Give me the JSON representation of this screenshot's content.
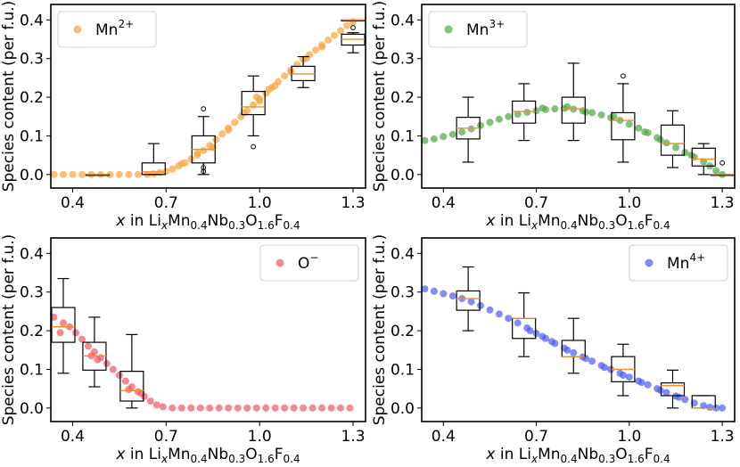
{
  "figure": {
    "x_label": {
      "italic": "x",
      "pre": " in Li",
      "s1": "x",
      "m1": "Mn",
      "s2": "0.4",
      "m2": "Nb",
      "s3": "0.3",
      "m3": "O",
      "s4": "1.6",
      "m4": "F",
      "s5": "0.4"
    },
    "y_label": "Species content (per f.u.)"
  },
  "chart_data": [
    {
      "type": "scatter",
      "id": "mn2",
      "legend": {
        "base": "Mn",
        "sup": "2+",
        "position": "top-left"
      },
      "color": "#f9a23a",
      "xlim": [
        0.33,
        1.34
      ],
      "ylim": [
        -0.035,
        0.44
      ],
      "xticks": [
        "0.4",
        "0.7",
        "1.0",
        "1.3"
      ],
      "yticks": [
        "0.0",
        "0.1",
        "0.2",
        "0.3",
        "0.4"
      ],
      "points": [
        [
          0.34,
          0.0
        ],
        [
          0.37,
          0.0
        ],
        [
          0.4,
          0.0
        ],
        [
          0.43,
          0.0
        ],
        [
          0.46,
          0.0
        ],
        [
          0.49,
          0.0
        ],
        [
          0.52,
          0.0
        ],
        [
          0.55,
          0.0
        ],
        [
          0.58,
          0.0
        ],
        [
          0.61,
          0.0
        ],
        [
          0.64,
          0.0
        ],
        [
          0.66,
          0.002
        ],
        [
          0.68,
          0.005
        ],
        [
          0.7,
          0.008
        ],
        [
          0.72,
          0.014
        ],
        [
          0.74,
          0.022
        ],
        [
          0.76,
          0.03
        ],
        [
          0.78,
          0.04
        ],
        [
          0.8,
          0.05
        ],
        [
          0.82,
          0.062
        ],
        [
          0.84,
          0.075
        ],
        [
          0.86,
          0.09
        ],
        [
          0.88,
          0.105
        ],
        [
          0.9,
          0.12
        ],
        [
          0.92,
          0.135
        ],
        [
          0.94,
          0.15
        ],
        [
          0.96,
          0.165
        ],
        [
          0.98,
          0.18
        ],
        [
          1.0,
          0.195
        ],
        [
          1.02,
          0.21
        ],
        [
          1.04,
          0.225
        ],
        [
          1.06,
          0.24
        ],
        [
          1.08,
          0.255
        ],
        [
          1.1,
          0.27
        ],
        [
          1.12,
          0.285
        ],
        [
          1.14,
          0.298
        ],
        [
          1.16,
          0.31
        ],
        [
          1.18,
          0.322
        ],
        [
          1.2,
          0.335
        ],
        [
          1.22,
          0.348
        ],
        [
          1.24,
          0.36
        ],
        [
          1.26,
          0.372
        ],
        [
          1.28,
          0.385
        ],
        [
          1.3,
          0.395
        ],
        [
          0.85,
          0.07
        ],
        [
          0.95,
          0.16
        ],
        [
          1.05,
          0.23
        ],
        [
          1.15,
          0.3
        ],
        [
          0.75,
          0.028
        ],
        [
          0.8,
          0.055
        ],
        [
          0.9,
          0.115
        ],
        [
          1.0,
          0.19
        ],
        [
          1.1,
          0.265
        ],
        [
          1.2,
          0.33
        ],
        [
          0.99,
          0.2
        ],
        [
          1.03,
          0.22
        ]
      ],
      "boxes": [
        {
          "x": 0.48,
          "q1": 0.0,
          "median": 0.0,
          "q3": 0.0,
          "wl": 0.0,
          "wh": 0.0,
          "fliers": []
        },
        {
          "x": 0.66,
          "q1": 0.0,
          "median": 0.007,
          "q3": 0.03,
          "wl": 0.0,
          "wh": 0.08,
          "fliers": []
        },
        {
          "x": 0.82,
          "q1": 0.03,
          "median": 0.065,
          "q3": 0.1,
          "wl": 0.0,
          "wh": 0.15,
          "fliers": [
            0.17,
            0.018,
            0.008
          ]
        },
        {
          "x": 0.98,
          "q1": 0.155,
          "median": 0.175,
          "q3": 0.215,
          "wl": 0.1,
          "wh": 0.255,
          "fliers": [
            0.072
          ]
        },
        {
          "x": 1.14,
          "q1": 0.243,
          "median": 0.26,
          "q3": 0.28,
          "wl": 0.225,
          "wh": 0.305,
          "fliers": []
        },
        {
          "x": 1.3,
          "q1": 0.335,
          "median": 0.35,
          "q3": 0.363,
          "wl": 0.315,
          "wh": 0.367,
          "fliers": []
        },
        {
          "x": 1.3,
          "q1": 0.398,
          "median": 0.4,
          "q3": 0.4,
          "wl": 0.398,
          "wh": 0.4,
          "fliers": [
            0.38
          ]
        }
      ]
    },
    {
      "type": "scatter",
      "id": "mn3",
      "legend": {
        "base": "Mn",
        "sup": "3+",
        "position": "top-left"
      },
      "color": "#4da642",
      "xlim": [
        0.33,
        1.34
      ],
      "ylim": [
        -0.035,
        0.44
      ],
      "xticks": [
        "0.4",
        "0.7",
        "1.0",
        "1.3"
      ],
      "yticks": [
        "0.0",
        "0.1",
        "0.2",
        "0.3",
        "0.4"
      ],
      "points": [
        [
          0.34,
          0.088
        ],
        [
          0.37,
          0.092
        ],
        [
          0.4,
          0.098
        ],
        [
          0.43,
          0.104
        ],
        [
          0.46,
          0.11
        ],
        [
          0.49,
          0.118
        ],
        [
          0.52,
          0.127
        ],
        [
          0.55,
          0.135
        ],
        [
          0.58,
          0.143
        ],
        [
          0.61,
          0.15
        ],
        [
          0.64,
          0.156
        ],
        [
          0.67,
          0.161
        ],
        [
          0.7,
          0.165
        ],
        [
          0.73,
          0.168
        ],
        [
          0.76,
          0.17
        ],
        [
          0.79,
          0.171
        ],
        [
          0.82,
          0.169
        ],
        [
          0.85,
          0.165
        ],
        [
          0.88,
          0.16
        ],
        [
          0.91,
          0.154
        ],
        [
          0.94,
          0.147
        ],
        [
          0.97,
          0.14
        ],
        [
          1.0,
          0.13
        ],
        [
          1.03,
          0.12
        ],
        [
          1.06,
          0.108
        ],
        [
          1.09,
          0.095
        ],
        [
          1.12,
          0.082
        ],
        [
          1.15,
          0.07
        ],
        [
          1.18,
          0.057
        ],
        [
          1.21,
          0.045
        ],
        [
          1.24,
          0.033
        ],
        [
          1.26,
          0.022
        ],
        [
          1.28,
          0.01
        ],
        [
          1.3,
          0.0
        ],
        [
          0.72,
          0.172
        ],
        [
          0.8,
          0.175
        ],
        [
          0.86,
          0.162
        ],
        [
          0.95,
          0.15
        ],
        [
          1.05,
          0.11
        ],
        [
          1.1,
          0.09
        ],
        [
          1.2,
          0.05
        ]
      ],
      "boxes": [
        {
          "x": 0.48,
          "q1": 0.092,
          "median": 0.12,
          "q3": 0.148,
          "wl": 0.032,
          "wh": 0.2,
          "fliers": []
        },
        {
          "x": 0.66,
          "q1": 0.133,
          "median": 0.163,
          "q3": 0.19,
          "wl": 0.088,
          "wh": 0.235,
          "fliers": []
        },
        {
          "x": 0.82,
          "q1": 0.133,
          "median": 0.17,
          "q3": 0.2,
          "wl": 0.088,
          "wh": 0.288,
          "fliers": []
        },
        {
          "x": 0.98,
          "q1": 0.09,
          "median": 0.14,
          "q3": 0.16,
          "wl": 0.032,
          "wh": 0.235,
          "fliers": [
            0.255
          ]
        },
        {
          "x": 1.14,
          "q1": 0.05,
          "median": 0.08,
          "q3": 0.128,
          "wl": 0.018,
          "wh": 0.165,
          "fliers": []
        },
        {
          "x": 1.24,
          "q1": 0.022,
          "median": 0.04,
          "q3": 0.068,
          "wl": 0.0,
          "wh": 0.08,
          "fliers": []
        },
        {
          "x": 1.3,
          "q1": 0.0,
          "median": 0.0,
          "q3": 0.0,
          "wl": 0.0,
          "wh": 0.0,
          "fliers": [
            0.03
          ]
        }
      ]
    },
    {
      "type": "scatter",
      "id": "o",
      "legend": {
        "base": "O",
        "sup": "−",
        "position": "top-right"
      },
      "color": "#f0585e",
      "xlim": [
        0.33,
        1.34
      ],
      "ylim": [
        -0.035,
        0.44
      ],
      "xticks": [
        "0.4",
        "0.7",
        "1.0",
        "1.3"
      ],
      "yticks": [
        "0.0",
        "0.1",
        "0.2",
        "0.3",
        "0.4"
      ],
      "points": [
        [
          0.34,
          0.235
        ],
        [
          0.37,
          0.22
        ],
        [
          0.39,
          0.21
        ],
        [
          0.41,
          0.195
        ],
        [
          0.43,
          0.178
        ],
        [
          0.45,
          0.16
        ],
        [
          0.47,
          0.145
        ],
        [
          0.49,
          0.13
        ],
        [
          0.51,
          0.115
        ],
        [
          0.53,
          0.1
        ],
        [
          0.55,
          0.085
        ],
        [
          0.57,
          0.07
        ],
        [
          0.59,
          0.055
        ],
        [
          0.61,
          0.042
        ],
        [
          0.63,
          0.03
        ],
        [
          0.65,
          0.018
        ],
        [
          0.67,
          0.008
        ],
        [
          0.69,
          0.003
        ],
        [
          0.72,
          0.0
        ],
        [
          0.75,
          0.0
        ],
        [
          0.78,
          0.0
        ],
        [
          0.81,
          0.0
        ],
        [
          0.84,
          0.0
        ],
        [
          0.87,
          0.0
        ],
        [
          0.9,
          0.0
        ],
        [
          0.93,
          0.0
        ],
        [
          0.96,
          0.0
        ],
        [
          0.99,
          0.0
        ],
        [
          1.02,
          0.0
        ],
        [
          1.05,
          0.0
        ],
        [
          1.08,
          0.0
        ],
        [
          1.11,
          0.0
        ],
        [
          1.14,
          0.0
        ],
        [
          1.17,
          0.0
        ],
        [
          1.2,
          0.0
        ],
        [
          1.23,
          0.0
        ],
        [
          1.26,
          0.0
        ],
        [
          1.29,
          0.0
        ],
        [
          0.36,
          0.195
        ],
        [
          0.46,
          0.135
        ],
        [
          0.48,
          0.125
        ],
        [
          0.58,
          0.048
        ],
        [
          0.62,
          0.038
        ]
      ],
      "boxes": [
        {
          "x": 0.37,
          "q1": 0.17,
          "median": 0.21,
          "q3": 0.26,
          "wl": 0.09,
          "wh": 0.335,
          "fliers": []
        },
        {
          "x": 0.47,
          "q1": 0.098,
          "median": 0.135,
          "q3": 0.17,
          "wl": 0.055,
          "wh": 0.235,
          "fliers": []
        },
        {
          "x": 0.59,
          "q1": 0.018,
          "median": 0.045,
          "q3": 0.095,
          "wl": 0.0,
          "wh": 0.19,
          "fliers": []
        }
      ]
    },
    {
      "type": "scatter",
      "id": "mn4",
      "legend": {
        "base": "Mn",
        "sup": "4+",
        "position": "top-right"
      },
      "color": "#4a5cf5",
      "xlim": [
        0.33,
        1.34
      ],
      "ylim": [
        -0.035,
        0.44
      ],
      "xticks": [
        "0.4",
        "0.7",
        "1.0",
        "1.3"
      ],
      "yticks": [
        "0.0",
        "0.1",
        "0.2",
        "0.3",
        "0.4"
      ],
      "points": [
        [
          0.34,
          0.308
        ],
        [
          0.37,
          0.302
        ],
        [
          0.4,
          0.296
        ],
        [
          0.43,
          0.29
        ],
        [
          0.46,
          0.283
        ],
        [
          0.49,
          0.275
        ],
        [
          0.52,
          0.265
        ],
        [
          0.55,
          0.254
        ],
        [
          0.58,
          0.243
        ],
        [
          0.61,
          0.232
        ],
        [
          0.64,
          0.22
        ],
        [
          0.67,
          0.207
        ],
        [
          0.7,
          0.193
        ],
        [
          0.73,
          0.18
        ],
        [
          0.76,
          0.167
        ],
        [
          0.79,
          0.155
        ],
        [
          0.82,
          0.143
        ],
        [
          0.85,
          0.132
        ],
        [
          0.88,
          0.121
        ],
        [
          0.91,
          0.11
        ],
        [
          0.94,
          0.1
        ],
        [
          0.97,
          0.09
        ],
        [
          1.0,
          0.08
        ],
        [
          1.03,
          0.07
        ],
        [
          1.06,
          0.06
        ],
        [
          1.09,
          0.05
        ],
        [
          1.12,
          0.04
        ],
        [
          1.15,
          0.031
        ],
        [
          1.18,
          0.022
        ],
        [
          1.21,
          0.013
        ],
        [
          1.24,
          0.006
        ],
        [
          1.26,
          0.002
        ],
        [
          1.28,
          0.0
        ],
        [
          1.3,
          0.0
        ],
        [
          0.68,
          0.2
        ],
        [
          0.72,
          0.185
        ],
        [
          0.75,
          0.172
        ],
        [
          0.8,
          0.15
        ],
        [
          0.86,
          0.128
        ],
        [
          0.92,
          0.105
        ],
        [
          0.98,
          0.085
        ],
        [
          1.04,
          0.066
        ],
        [
          1.1,
          0.046
        ],
        [
          1.16,
          0.028
        ]
      ],
      "boxes": [
        {
          "x": 0.48,
          "q1": 0.253,
          "median": 0.283,
          "q3": 0.303,
          "wl": 0.2,
          "wh": 0.365,
          "fliers": []
        },
        {
          "x": 0.66,
          "q1": 0.18,
          "median": 0.232,
          "q3": 0.232,
          "wl": 0.133,
          "wh": 0.298,
          "fliers": []
        },
        {
          "x": 0.82,
          "q1": 0.133,
          "median": 0.133,
          "q3": 0.175,
          "wl": 0.09,
          "wh": 0.232,
          "fliers": []
        },
        {
          "x": 0.98,
          "q1": 0.068,
          "median": 0.1,
          "q3": 0.133,
          "wl": 0.032,
          "wh": 0.165,
          "fliers": []
        },
        {
          "x": 1.14,
          "q1": 0.032,
          "median": 0.058,
          "q3": 0.065,
          "wl": 0.0,
          "wh": 0.098,
          "fliers": []
        },
        {
          "x": 1.24,
          "q1": 0.0,
          "median": 0.0,
          "q3": 0.032,
          "wl": 0.0,
          "wh": 0.032,
          "fliers": []
        }
      ]
    }
  ]
}
